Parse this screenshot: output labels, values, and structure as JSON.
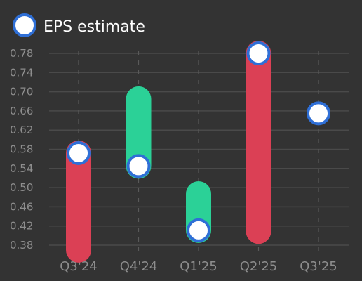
{
  "chart_data": {
    "type": "bar",
    "subtype": "range-with-estimate-markers",
    "legend": {
      "label": "EPS estimate",
      "position": "top-left"
    },
    "categories": [
      "Q3'24",
      "Q4'24",
      "Q1'25",
      "Q2'25",
      "Q3'25"
    ],
    "series": [
      {
        "name": "EPS estimate",
        "values": [
          0.572,
          0.545,
          0.411,
          0.78,
          0.655
        ]
      },
      {
        "role": "actual",
        "values": [
          0.37,
          0.685,
          0.487,
          0.409,
          null
        ]
      }
    ],
    "ylim": [
      0.36,
      0.8
    ],
    "yticks": [
      0.38,
      0.42,
      0.46,
      0.5,
      0.54,
      0.58,
      0.62,
      0.66,
      0.7,
      0.74,
      0.78
    ],
    "ytick_labels": [
      "0.38",
      "0.42",
      "0.46",
      "0.50",
      "0.54",
      "0.58",
      "0.62",
      "0.66",
      "0.70",
      "0.74",
      "0.78"
    ],
    "grid": true,
    "colors": {
      "background": "#333333",
      "beat": "#2bd197",
      "miss": "#db4055",
      "marker_fill": "#ffffff",
      "marker_stroke": "#2f6fd6",
      "grid": "#4a4a4a",
      "vgrid": "#5a5a5a",
      "tick_text": "#8e8e8e",
      "legend_text": "#ffffff"
    }
  }
}
